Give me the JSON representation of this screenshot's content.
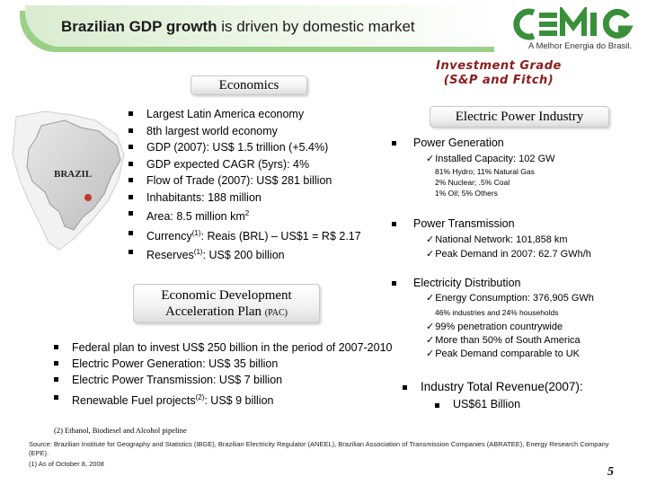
{
  "header": {
    "title_bold": "Brazilian GDP growth",
    "title_rest": " is driven by domestic market"
  },
  "logo": {
    "word": "CEMIG",
    "tagline": "A Melhor Energia do Brasil."
  },
  "investment_grade": {
    "line1": "Investment Grade",
    "line2": "(S&P and Fitch)"
  },
  "economics": {
    "title": "Economics",
    "map_label": "BRAZIL",
    "items": [
      "Largest Latin America economy",
      "8th largest world economy",
      "GDP (2007): US$ 1.5 trillion (+5.4%)",
      "GDP expected CAGR (5yrs): 4%",
      "Flow of Trade (2007): US$ 281 billion",
      "Inhabitants: 188 million",
      "Area: 8.5 million km",
      "Currency",
      "Reserves"
    ],
    "area_sup": "2",
    "currency_sup": "(1)",
    "currency_rest": ": Reais (BRL) – US$1 = R$ 2.17",
    "reserves_sup": "(1)",
    "reserves_rest": ": US$ 200 billion"
  },
  "pac": {
    "title_line1": "Economic Development",
    "title_line2": "Acceleration Plan",
    "title_abbr": "(PAC)",
    "items": [
      "Federal plan  to invest US$ 250 billion in the period of 2007-2010",
      "Electric Power Generation: US$ 35 billion",
      "Electric Power Transmission: US$ 7 billion",
      "Renewable Fuel projects"
    ],
    "renewable_sup": "(2)",
    "renewable_rest": ":  US$ 9 billion",
    "footnote": "(2)  Ethanol, Biodiesel and Alcohol pipeline"
  },
  "electric": {
    "title": "Electric Power Industry",
    "generation": {
      "label": "Power Generation",
      "capacity": "Installed Capacity: 102 GW",
      "mix1": "81% Hydro; 11% Natural Gas",
      "mix2": "2% Nuclear; .5% Coal",
      "mix3": "1% Oil; 5% Others"
    },
    "transmission": {
      "label": "Power Transmission",
      "network": "National Network: 101,858 km",
      "peak": "Peak Demand in 2007: 62.7 GWh/h"
    },
    "distribution": {
      "label": "Electricity Distribution",
      "consumption": "Energy Consumption: 376,905 GWh",
      "split": "46% industries and 24% households",
      "penetration": "99% penetration countrywide",
      "share": "More than 50% of South America",
      "peak": "Peak Demand comparable to UK"
    },
    "revenue": {
      "label": "Industry Total Revenue(2007):",
      "value": "US$61 Billion"
    }
  },
  "source": "Source: Brazilian Institute for Geography and Statistics (IBGE), Brazilian Electricity Regulator (ANEEL), Brazilian Association of Transmission Companies (ABRATEE), Energy Research Company (EPE).",
  "footnote1": "(1)  As of October 8, 2008",
  "page_number": "5",
  "colors": {
    "header_green": "#9ccf88",
    "logo_green": "#3a8f3a",
    "grade_red": "#8a1c1c"
  }
}
